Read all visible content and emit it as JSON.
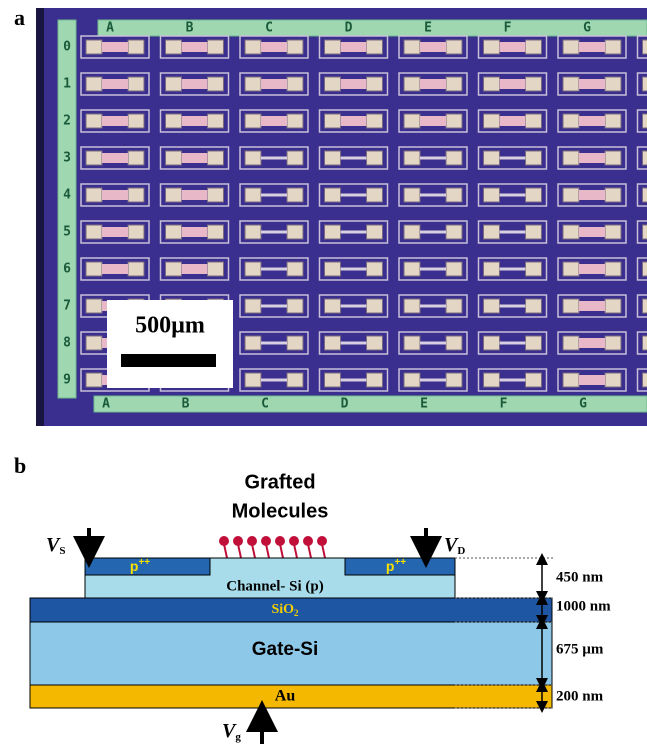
{
  "panel_a": {
    "label": "a",
    "column_labels": [
      "A",
      "B",
      "C",
      "D",
      "E",
      "F",
      "G"
    ],
    "row_labels": [
      "0",
      "1",
      "2",
      "3",
      "4",
      "5",
      "6",
      "7",
      "8",
      "9"
    ],
    "scale_bar": "500µm"
  },
  "panel_b": {
    "label": "b",
    "molecules_label": [
      "Grafted",
      "Molecules"
    ],
    "source": {
      "symbol": "V",
      "subscript": "S"
    },
    "drain": {
      "symbol": "V",
      "subscript": "D"
    },
    "gate": {
      "symbol": "V",
      "subscript": "g"
    },
    "layers": {
      "doped": {
        "text": "p",
        "superscript": "++"
      },
      "channel": "Channel- Si (p)",
      "oxide": {
        "text": "SiO",
        "subscript": "2"
      },
      "gate": "Gate-Si",
      "contact": "Au"
    },
    "thicknesses": [
      "450 nm",
      "1000 nm",
      "675 µm",
      "200 nm"
    ]
  }
}
